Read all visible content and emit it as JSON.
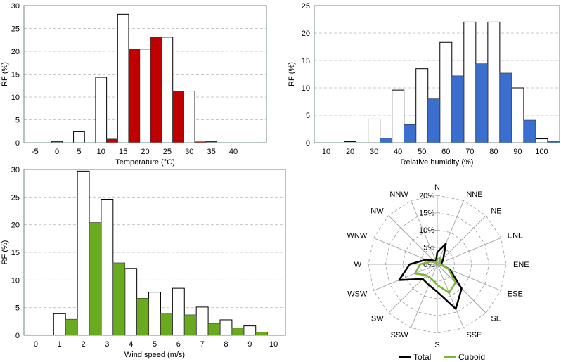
{
  "colors": {
    "frame": "#6f8a86",
    "grid": "#c8c8c8",
    "white_bar_stroke": "#000000",
    "temperature_fill": "#c00000",
    "humidity_fill": "#3a6fcf",
    "wind_fill": "#6aaa1e",
    "rose_total": "#000000",
    "rose_cuboid": "#7ab534"
  },
  "chart_data": [
    {
      "type": "bar",
      "panel": "temperature",
      "xlabel": "Temperature (°C)",
      "ylabel": "RF (%)",
      "ylim": [
        0,
        30
      ],
      "yticks": [
        "0",
        "5",
        "10",
        "15",
        "20",
        "25",
        "30"
      ],
      "x_ticks": [
        "-5",
        "0",
        "5",
        "10",
        "15",
        "20",
        "25",
        "30",
        "35",
        "40"
      ],
      "bin_width": 2.5,
      "series": [
        {
          "style": "white",
          "bins": [
            {
              "x": 0,
              "v": 0.2
            },
            {
              "x": 5,
              "v": 2.4
            },
            {
              "x": 10,
              "v": 14.3
            },
            {
              "x": 15,
              "v": 28.1
            },
            {
              "x": 20,
              "v": 20.5
            },
            {
              "x": 25,
              "v": 23.1
            },
            {
              "x": 30,
              "v": 11.3
            },
            {
              "x": 35,
              "v": 0.2
            }
          ]
        },
        {
          "style": "filled",
          "bins": [
            {
              "x": 12.5,
              "v": 0.8
            },
            {
              "x": 17.5,
              "v": 20.5
            },
            {
              "x": 22.5,
              "v": 23.1
            },
            {
              "x": 27.5,
              "v": 11.3
            },
            {
              "x": 32.5,
              "v": 0.2
            }
          ]
        }
      ]
    },
    {
      "type": "bar",
      "panel": "humidity",
      "xlabel": "Relative humidity (%)",
      "ylabel": "RF (%)",
      "ylim": [
        0,
        25
      ],
      "yticks": [
        "0",
        "5",
        "10",
        "15",
        "20",
        "25"
      ],
      "x_ticks": [
        "10",
        "20",
        "30",
        "40",
        "50",
        "60",
        "70",
        "80",
        "90",
        "100"
      ],
      "bin_width": 5,
      "series": [
        {
          "style": "white",
          "bins": [
            {
              "x": 20,
              "v": 0.2
            },
            {
              "x": 30,
              "v": 4.3
            },
            {
              "x": 40,
              "v": 9.6
            },
            {
              "x": 50,
              "v": 13.5
            },
            {
              "x": 60,
              "v": 18.3
            },
            {
              "x": 70,
              "v": 22.0
            },
            {
              "x": 80,
              "v": 22.0
            },
            {
              "x": 90,
              "v": 10.0
            },
            {
              "x": 100,
              "v": 0.7
            }
          ]
        },
        {
          "style": "filled",
          "bins": [
            {
              "x": 35,
              "v": 0.8
            },
            {
              "x": 45,
              "v": 3.3
            },
            {
              "x": 55,
              "v": 8.0
            },
            {
              "x": 65,
              "v": 12.2
            },
            {
              "x": 75,
              "v": 14.4
            },
            {
              "x": 85,
              "v": 12.7
            },
            {
              "x": 95,
              "v": 4.1
            },
            {
              "x": 105,
              "v": 0.2
            }
          ]
        }
      ]
    },
    {
      "type": "bar",
      "panel": "wind",
      "xlabel": "Wind speed (m/s)",
      "ylabel": "RF (%)",
      "ylim": [
        0,
        30
      ],
      "yticks": [
        "0",
        "5",
        "10",
        "15",
        "20",
        "25",
        "30"
      ],
      "x_ticks": [
        "0",
        "1",
        "2",
        "3",
        "4",
        "5",
        "6",
        "7",
        "8",
        "9",
        "10"
      ],
      "bin_width": 0.5,
      "series": [
        {
          "style": "white",
          "bins": [
            {
              "x": 1,
              "v": 3.9
            },
            {
              "x": 2,
              "v": 29.7
            },
            {
              "x": 3,
              "v": 24.6
            },
            {
              "x": 4,
              "v": 12.1
            },
            {
              "x": 5,
              "v": 7.8
            },
            {
              "x": 6,
              "v": 8.5
            },
            {
              "x": 7,
              "v": 5.1
            },
            {
              "x": 8,
              "v": 2.8
            },
            {
              "x": 9,
              "v": 1.7
            }
          ]
        },
        {
          "style": "filled",
          "bins": [
            {
              "x": -0.5,
              "v": 0.1
            },
            {
              "x": 1.5,
              "v": 2.9
            },
            {
              "x": 2.5,
              "v": 20.4
            },
            {
              "x": 3.5,
              "v": 13.1
            },
            {
              "x": 4.5,
              "v": 6.7
            },
            {
              "x": 5.5,
              "v": 4.0
            },
            {
              "x": 6.5,
              "v": 3.7
            },
            {
              "x": 7.5,
              "v": 2.1
            },
            {
              "x": 8.5,
              "v": 1.3
            },
            {
              "x": 9.5,
              "v": 0.6
            }
          ]
        }
      ]
    },
    {
      "type": "radar",
      "panel": "wind-rose",
      "directions": [
        "N",
        "NNE",
        "NE",
        "ENE",
        "ENE",
        "ESE",
        "SE",
        "SSE",
        "S",
        "SSW",
        "SW",
        "WSW",
        "W",
        "WNW",
        "NW",
        "NNW"
      ],
      "rlim": [
        0,
        20
      ],
      "ring_values": [
        0,
        5,
        10,
        15,
        20
      ],
      "ring_labels": [
        "0%",
        "5%",
        "10%",
        "15%",
        "20%"
      ],
      "legend_position": "bottom",
      "series": [
        {
          "name": "Total",
          "values": [
            3.5,
            6.5,
            2.5,
            1.5,
            1.0,
            4.0,
            10.0,
            14.0,
            8.0,
            6.5,
            6.0,
            12.0,
            8.0,
            3.5,
            1.5,
            1.0
          ]
        },
        {
          "name": "Cuboid",
          "values": [
            1.5,
            2.0,
            1.0,
            1.0,
            1.0,
            3.5,
            7.5,
            9.0,
            6.0,
            4.5,
            4.5,
            7.0,
            5.0,
            2.0,
            1.0,
            0.5
          ]
        }
      ]
    }
  ]
}
